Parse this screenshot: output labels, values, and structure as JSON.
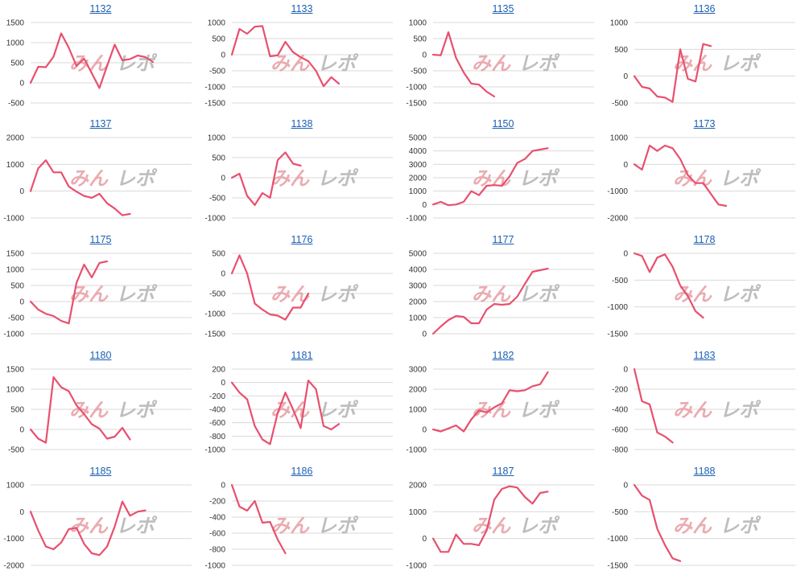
{
  "chart_data": [
    {
      "title": "1132",
      "type": "line",
      "yticks": [
        1500,
        1000,
        500,
        0,
        -500
      ],
      "ylim": [
        -500,
        1500
      ],
      "values": [
        0,
        400,
        390,
        650,
        1230,
        870,
        420,
        600,
        240,
        -130,
        420,
        950,
        560,
        590,
        680,
        640,
        520
      ]
    },
    {
      "title": "1133",
      "type": "line",
      "yticks": [
        1000,
        500,
        0,
        -500,
        -1000,
        -1500
      ],
      "ylim": [
        -1500,
        1000
      ],
      "values": [
        0,
        800,
        650,
        870,
        890,
        -50,
        -20,
        400,
        80,
        -80,
        -200,
        -500,
        -980,
        -700,
        -900
      ]
    },
    {
      "title": "1135",
      "type": "line",
      "yticks": [
        1000,
        500,
        0,
        -500,
        -1000,
        -1500
      ],
      "ylim": [
        -1500,
        1000
      ],
      "values": [
        0,
        -20,
        700,
        -100,
        -550,
        -900,
        -930,
        -1150,
        -1300
      ]
    },
    {
      "title": "1136",
      "type": "line",
      "yticks": [
        1000,
        500,
        0,
        -500
      ],
      "ylim": [
        -500,
        1000
      ],
      "values": [
        0,
        -200,
        -230,
        -380,
        -400,
        -480,
        500,
        -50,
        -100,
        600,
        560
      ]
    },
    {
      "title": "1137",
      "type": "line",
      "yticks": [
        2000,
        1000,
        0,
        -1000
      ],
      "ylim": [
        -1000,
        2000
      ],
      "values": [
        0,
        850,
        1150,
        700,
        700,
        170,
        -20,
        -180,
        -250,
        -100,
        -450,
        -650,
        -900,
        -850
      ]
    },
    {
      "title": "1138",
      "type": "line",
      "yticks": [
        1000,
        500,
        0,
        -500,
        -1000
      ],
      "ylim": [
        -1000,
        1000
      ],
      "values": [
        0,
        100,
        -450,
        -680,
        -380,
        -500,
        440,
        630,
        350,
        300
      ]
    },
    {
      "title": "1150",
      "type": "line",
      "yticks": [
        5000,
        4000,
        3000,
        2000,
        1000,
        0,
        -1000
      ],
      "ylim": [
        -1000,
        5000
      ],
      "values": [
        0,
        200,
        -50,
        0,
        200,
        1000,
        700,
        1400,
        1450,
        1400,
        2100,
        3100,
        3400,
        4000,
        4100,
        4200
      ]
    },
    {
      "title": "1173",
      "type": "line",
      "yticks": [
        1000,
        0,
        -1000,
        -2000
      ],
      "ylim": [
        -2000,
        1000
      ],
      "values": [
        0,
        -200,
        700,
        500,
        700,
        600,
        200,
        -400,
        -700,
        -700,
        -1100,
        -1500,
        -1550
      ]
    },
    {
      "title": "1175",
      "type": "line",
      "yticks": [
        1500,
        1000,
        500,
        0,
        -500,
        -1000
      ],
      "ylim": [
        -1000,
        1500
      ],
      "values": [
        0,
        -250,
        -380,
        -450,
        -600,
        -680,
        580,
        1150,
        750,
        1200,
        1250
      ]
    },
    {
      "title": "1176",
      "type": "line",
      "yticks": [
        500,
        0,
        -500,
        -1000,
        -1500
      ],
      "ylim": [
        -1500,
        500
      ],
      "values": [
        0,
        450,
        0,
        -750,
        -900,
        -1020,
        -1050,
        -1150,
        -850,
        -850,
        -500
      ]
    },
    {
      "title": "1177",
      "type": "line",
      "yticks": [
        5000,
        4000,
        3000,
        2000,
        1000,
        0
      ],
      "ylim": [
        0,
        5000
      ],
      "values": [
        0,
        450,
        850,
        1100,
        1050,
        650,
        650,
        1500,
        1850,
        1800,
        1850,
        2300,
        3100,
        3850,
        3950,
        4050
      ]
    },
    {
      "title": "1178",
      "type": "line",
      "yticks": [
        0,
        -500,
        -1000,
        -1500
      ],
      "ylim": [
        -1500,
        0
      ],
      "values": [
        0,
        -50,
        -350,
        -80,
        -20,
        -250,
        -600,
        -800,
        -1080,
        -1200
      ]
    },
    {
      "title": "1180",
      "type": "line",
      "yticks": [
        1500,
        1000,
        500,
        0,
        -500
      ],
      "ylim": [
        -500,
        1500
      ],
      "values": [
        0,
        -230,
        -330,
        1300,
        1050,
        950,
        600,
        380,
        130,
        20,
        -230,
        -180,
        40,
        -250
      ]
    },
    {
      "title": "1181",
      "type": "line",
      "yticks": [
        200,
        0,
        -200,
        -400,
        -600,
        -800,
        -1000
      ],
      "ylim": [
        -1000,
        200
      ],
      "values": [
        0,
        -150,
        -250,
        -650,
        -850,
        -920,
        -450,
        -150,
        -400,
        -680,
        30,
        -100,
        -650,
        -700,
        -620
      ]
    },
    {
      "title": "1182",
      "type": "line",
      "yticks": [
        3000,
        2000,
        1000,
        0,
        -1000
      ],
      "ylim": [
        -1000,
        3000
      ],
      "values": [
        0,
        -100,
        50,
        200,
        -100,
        500,
        950,
        850,
        1100,
        1300,
        1950,
        1900,
        1950,
        2150,
        2250,
        2850
      ]
    },
    {
      "title": "1183",
      "type": "line",
      "yticks": [
        0,
        -200,
        -400,
        -600,
        -800
      ],
      "ylim": [
        -800,
        0
      ],
      "values": [
        0,
        -320,
        -350,
        -630,
        -670,
        -730
      ]
    },
    {
      "title": "1185",
      "type": "line",
      "yticks": [
        1000,
        0,
        -1000,
        -2000
      ],
      "ylim": [
        -2000,
        1000
      ],
      "values": [
        0,
        -700,
        -1300,
        -1400,
        -1150,
        -650,
        -600,
        -1200,
        -1550,
        -1620,
        -1300,
        -550,
        380,
        -150,
        0,
        50
      ]
    },
    {
      "title": "1186",
      "type": "line",
      "yticks": [
        0,
        -200,
        -400,
        -600,
        -800,
        -1000
      ],
      "ylim": [
        -1000,
        0
      ],
      "values": [
        0,
        -270,
        -320,
        -200,
        -470,
        -460,
        -680,
        -850
      ]
    },
    {
      "title": "1187",
      "type": "line",
      "yticks": [
        2000,
        1000,
        0,
        -1000
      ],
      "ylim": [
        -1000,
        2000
      ],
      "values": [
        0,
        -500,
        -500,
        150,
        -200,
        -200,
        -250,
        300,
        1450,
        1850,
        1950,
        1900,
        1550,
        1300,
        1700,
        1750
      ]
    },
    {
      "title": "1188",
      "type": "line",
      "yticks": [
        0,
        -500,
        -1000,
        -1500
      ],
      "ylim": [
        -1500,
        0
      ],
      "values": [
        0,
        -200,
        -280,
        -820,
        -1120,
        -1370,
        -1420
      ]
    }
  ],
  "watermark": {
    "text": "みんレポ",
    "color_left": "#e8a2a8",
    "color_right": "#b8b8b8"
  },
  "style": {
    "line_color": "#e8506e",
    "grid_color": "#d9d9d9",
    "title_color": "#1a5fb4"
  }
}
